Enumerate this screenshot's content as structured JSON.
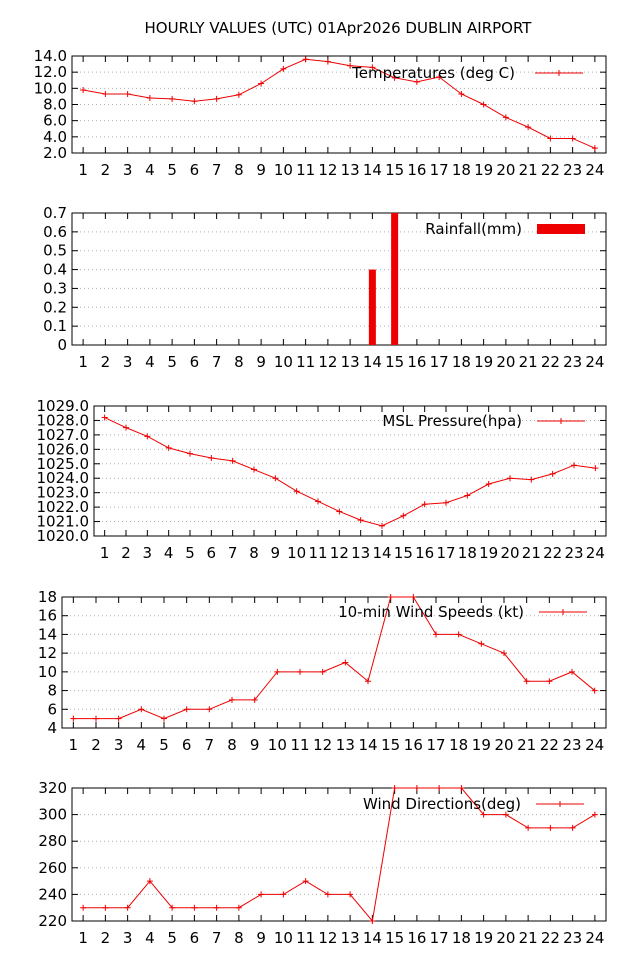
{
  "page_title": "HOURLY VALUES (UTC) 01Apr2026  DUBLIN AIRPORT",
  "colors": {
    "series": "#ee0000",
    "grid": "#b0b0b0",
    "axis": "#000000"
  },
  "chart_data": [
    {
      "id": "temperature",
      "type": "line",
      "legend": "Temperatures (deg C)",
      "legend_position": "top-right",
      "grid": true,
      "x": [
        1,
        2,
        3,
        4,
        5,
        6,
        7,
        8,
        9,
        10,
        11,
        12,
        13,
        14,
        15,
        16,
        17,
        18,
        19,
        20,
        21,
        22,
        23,
        24
      ],
      "values": [
        9.8,
        9.3,
        9.3,
        8.8,
        8.7,
        8.4,
        8.7,
        9.2,
        10.6,
        12.4,
        13.6,
        13.3,
        12.8,
        12.6,
        11.3,
        10.8,
        11.4,
        9.3,
        8.0,
        6.4,
        5.2,
        3.8,
        3.8,
        2.6
      ],
      "ylim": [
        2.0,
        14.0
      ],
      "yticks": [
        2.0,
        4.0,
        6.0,
        8.0,
        10.0,
        12.0,
        14.0
      ],
      "ytick_decimals": 1,
      "xlabel": "",
      "ylabel": ""
    },
    {
      "id": "rainfall",
      "type": "bar",
      "legend": "Rainfall(mm)",
      "legend_position": "top-right",
      "grid": true,
      "x": [
        1,
        2,
        3,
        4,
        5,
        6,
        7,
        8,
        9,
        10,
        11,
        12,
        13,
        14,
        15,
        16,
        17,
        18,
        19,
        20,
        21,
        22,
        23,
        24
      ],
      "values": [
        0,
        0,
        0,
        0,
        0,
        0,
        0,
        0,
        0,
        0,
        0,
        0,
        0,
        0.4,
        0.7,
        0,
        0,
        0,
        0,
        0,
        0,
        0,
        0,
        0
      ],
      "ylim": [
        0,
        0.7
      ],
      "yticks": [
        0,
        0.1,
        0.2,
        0.3,
        0.4,
        0.5,
        0.6,
        0.7
      ],
      "ytick_labels": [
        "0",
        "0.1",
        "0.2",
        "0.3",
        "0.4",
        "0.5",
        "0.6",
        "0.7"
      ],
      "xlabel": "",
      "ylabel": ""
    },
    {
      "id": "pressure",
      "type": "line",
      "legend": "MSL Pressure(hpa)",
      "legend_position": "top-right",
      "grid": true,
      "x": [
        1,
        2,
        3,
        4,
        5,
        6,
        7,
        8,
        9,
        10,
        11,
        12,
        13,
        14,
        15,
        16,
        17,
        18,
        19,
        20,
        21,
        22,
        23,
        24
      ],
      "values": [
        1028.2,
        1027.5,
        1026.9,
        1026.1,
        1025.7,
        1025.4,
        1025.2,
        1024.6,
        1024.0,
        1023.1,
        1022.4,
        1021.7,
        1021.1,
        1020.7,
        1021.4,
        1022.2,
        1022.3,
        1022.8,
        1023.6,
        1024.0,
        1023.9,
        1024.3,
        1024.9,
        1024.7
      ],
      "ylim": [
        1020.0,
        1029.0
      ],
      "yticks": [
        1020,
        1021,
        1022,
        1023,
        1024,
        1025,
        1026,
        1027,
        1028,
        1029
      ],
      "ytick_decimals": 1,
      "xlabel": "",
      "ylabel": ""
    },
    {
      "id": "windspeed",
      "type": "line",
      "legend": "10-min Wind Speeds (kt)",
      "legend_position": "top-right",
      "grid": true,
      "x": [
        1,
        2,
        3,
        4,
        5,
        6,
        7,
        8,
        9,
        10,
        11,
        12,
        13,
        14,
        15,
        16,
        17,
        18,
        19,
        20,
        21,
        22,
        23,
        24
      ],
      "values": [
        5,
        5,
        5,
        6,
        5,
        6,
        6,
        7,
        7,
        10,
        10,
        10,
        11,
        9,
        18,
        18,
        14,
        14,
        13,
        12,
        9,
        9,
        10,
        8
      ],
      "ylim": [
        4,
        18
      ],
      "yticks": [
        4,
        6,
        8,
        10,
        12,
        14,
        16,
        18
      ],
      "ytick_decimals": 0,
      "xlabel": "",
      "ylabel": ""
    },
    {
      "id": "winddir",
      "type": "line",
      "legend": "Wind Directions(deg)",
      "legend_position": "top-right",
      "grid": true,
      "x": [
        1,
        2,
        3,
        4,
        5,
        6,
        7,
        8,
        9,
        10,
        11,
        12,
        13,
        14,
        15,
        16,
        17,
        18,
        19,
        20,
        21,
        22,
        23,
        24
      ],
      "values": [
        230,
        230,
        230,
        250,
        230,
        230,
        230,
        230,
        240,
        240,
        250,
        240,
        240,
        220,
        320,
        320,
        320,
        320,
        300,
        300,
        290,
        290,
        290,
        300
      ],
      "ylim": [
        220,
        320
      ],
      "yticks": [
        220,
        240,
        260,
        280,
        300,
        320
      ],
      "ytick_decimals": 0,
      "xlabel": "",
      "ylabel": ""
    }
  ]
}
